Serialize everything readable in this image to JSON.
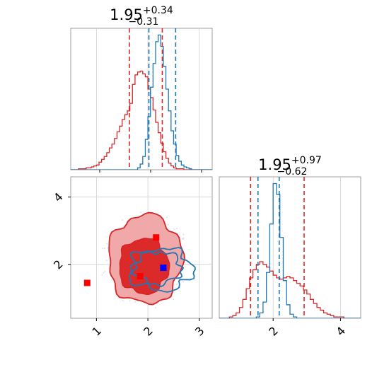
{
  "chart_data": [
    {
      "type": "histogram",
      "panel": "top-left",
      "title": {
        "base": "1.95",
        "sup": "+0.34",
        "sub": "−0.31"
      },
      "xlim": [
        0.5,
        3.25
      ],
      "bins": [
        0.5,
        0.55,
        0.6,
        0.65,
        0.7,
        0.75,
        0.8,
        0.85,
        0.9,
        0.95,
        1.0,
        1.05,
        1.1,
        1.15,
        1.2,
        1.25,
        1.3,
        1.35,
        1.4,
        1.45,
        1.5,
        1.55,
        1.6,
        1.65,
        1.7,
        1.75,
        1.8,
        1.85,
        1.9,
        1.95,
        2.0,
        2.05,
        2.1,
        2.15,
        2.2,
        2.25,
        2.3,
        2.35,
        2.4,
        2.45,
        2.5,
        2.55,
        2.6,
        2.65,
        2.7,
        2.75,
        2.8,
        2.85,
        2.9,
        2.95,
        3.0,
        3.05,
        3.1,
        3.15,
        3.2,
        3.25
      ],
      "series": [
        {
          "color": "#d62728",
          "counts": [
            0,
            0,
            0,
            1,
            1,
            1,
            2,
            2,
            3,
            4,
            5,
            8,
            11,
            14,
            18,
            23,
            27,
            33,
            40,
            46,
            53,
            58,
            62,
            70,
            90,
            100,
            103,
            104,
            101,
            98,
            85,
            76,
            63,
            50,
            39,
            28,
            19,
            12,
            7,
            4,
            2,
            1,
            1,
            1,
            0,
            0,
            0,
            0,
            0,
            0,
            0,
            0,
            0,
            0,
            0
          ]
        },
        {
          "color": "#1f77b4",
          "counts": [
            0,
            0,
            0,
            0,
            0,
            0,
            0,
            0,
            0,
            0,
            0,
            0,
            0,
            0,
            0,
            0,
            0,
            0,
            0,
            0,
            0,
            0,
            0,
            0,
            0,
            0,
            2,
            6,
            14,
            32,
            56,
            87,
            112,
            135,
            142,
            130,
            109,
            85,
            62,
            41,
            27,
            15,
            9,
            5,
            3,
            2,
            1,
            0,
            0,
            0,
            0,
            0,
            0,
            0,
            0
          ]
        }
      ],
      "quantile_lines": [
        {
          "color": "#d62728",
          "x": [
            1.64,
            2.28
          ]
        },
        {
          "color": "#1f77b4",
          "x": [
            2.02,
            2.54
          ]
        }
      ]
    },
    {
      "type": "contour",
      "panel": "bottom-left",
      "xlim": [
        0.5,
        3.25
      ],
      "ylim": [
        0.4,
        4.6
      ],
      "xticks": [
        "1",
        "2",
        "3"
      ],
      "yticks": [
        "2",
        "4"
      ],
      "red_filled_levels": [
        {
          "cx": 1.95,
          "cy": 2.15,
          "rx": 0.72,
          "ry": 1.32,
          "fill": "#f0a8a8",
          "stroke": "#d62728"
        },
        {
          "cx": 1.92,
          "cy": 1.95,
          "rx": 0.48,
          "ry": 0.82,
          "fill": "#dc2a2a",
          "stroke": "#d62728"
        }
      ],
      "blue_levels": [
        {
          "cx": 2.25,
          "cy": 1.85,
          "rx": 0.62,
          "ry": 0.62
        },
        {
          "cx": 2.2,
          "cy": 1.9,
          "rx": 0.45,
          "ry": 0.48
        }
      ],
      "markers": [
        {
          "x": 0.82,
          "y": 1.45,
          "color": "#ff0000"
        },
        {
          "x": 1.85,
          "y": 1.65,
          "color": "#ff0000"
        },
        {
          "x": 2.16,
          "y": 2.8,
          "color": "#ff0000"
        },
        {
          "x": 2.3,
          "y": 1.9,
          "color": "#0000ff"
        }
      ]
    },
    {
      "type": "histogram",
      "panel": "bottom-right",
      "title": {
        "base": "1.95",
        "sup": "+0.97",
        "sub": "−0.62"
      },
      "xlim": [
        0.4,
        4.6
      ],
      "xticks": [
        "2",
        "4"
      ],
      "bins": [
        0.4,
        0.5,
        0.6,
        0.7,
        0.8,
        0.9,
        1.0,
        1.1,
        1.2,
        1.3,
        1.4,
        1.5,
        1.6,
        1.7,
        1.8,
        1.9,
        2.0,
        2.1,
        2.2,
        2.3,
        2.4,
        2.5,
        2.6,
        2.7,
        2.8,
        2.9,
        3.0,
        3.1,
        3.2,
        3.3,
        3.4,
        3.5,
        3.6,
        3.7,
        3.8,
        3.9,
        4.0,
        4.1,
        4.2,
        4.3,
        4.4,
        4.5,
        4.6
      ],
      "series": [
        {
          "color": "#d62728",
          "counts": [
            0,
            0,
            0,
            1,
            2,
            4,
            8,
            14,
            22,
            30,
            36,
            40,
            42,
            40,
            38,
            35,
            32,
            30,
            29,
            30,
            31,
            30,
            28,
            26,
            24,
            21,
            18,
            14,
            11,
            8,
            6,
            4,
            3,
            2,
            1,
            1,
            1,
            0,
            0,
            0,
            0,
            0
          ]
        },
        {
          "color": "#1f77b4",
          "counts": [
            0,
            0,
            0,
            0,
            0,
            0,
            0,
            0,
            0,
            0,
            0,
            1,
            4,
            12,
            34,
            70,
            100,
            92,
            60,
            28,
            10,
            3,
            1,
            0,
            0,
            0,
            0,
            0,
            0,
            0,
            0,
            0,
            0,
            0,
            0,
            0,
            0,
            0,
            0,
            0,
            0,
            0
          ]
        }
      ],
      "quantile_lines": [
        {
          "color": "#d62728",
          "x": [
            1.33,
            2.92
          ]
        },
        {
          "color": "#1f77b4",
          "x": [
            1.55,
            2.18
          ]
        }
      ]
    }
  ]
}
